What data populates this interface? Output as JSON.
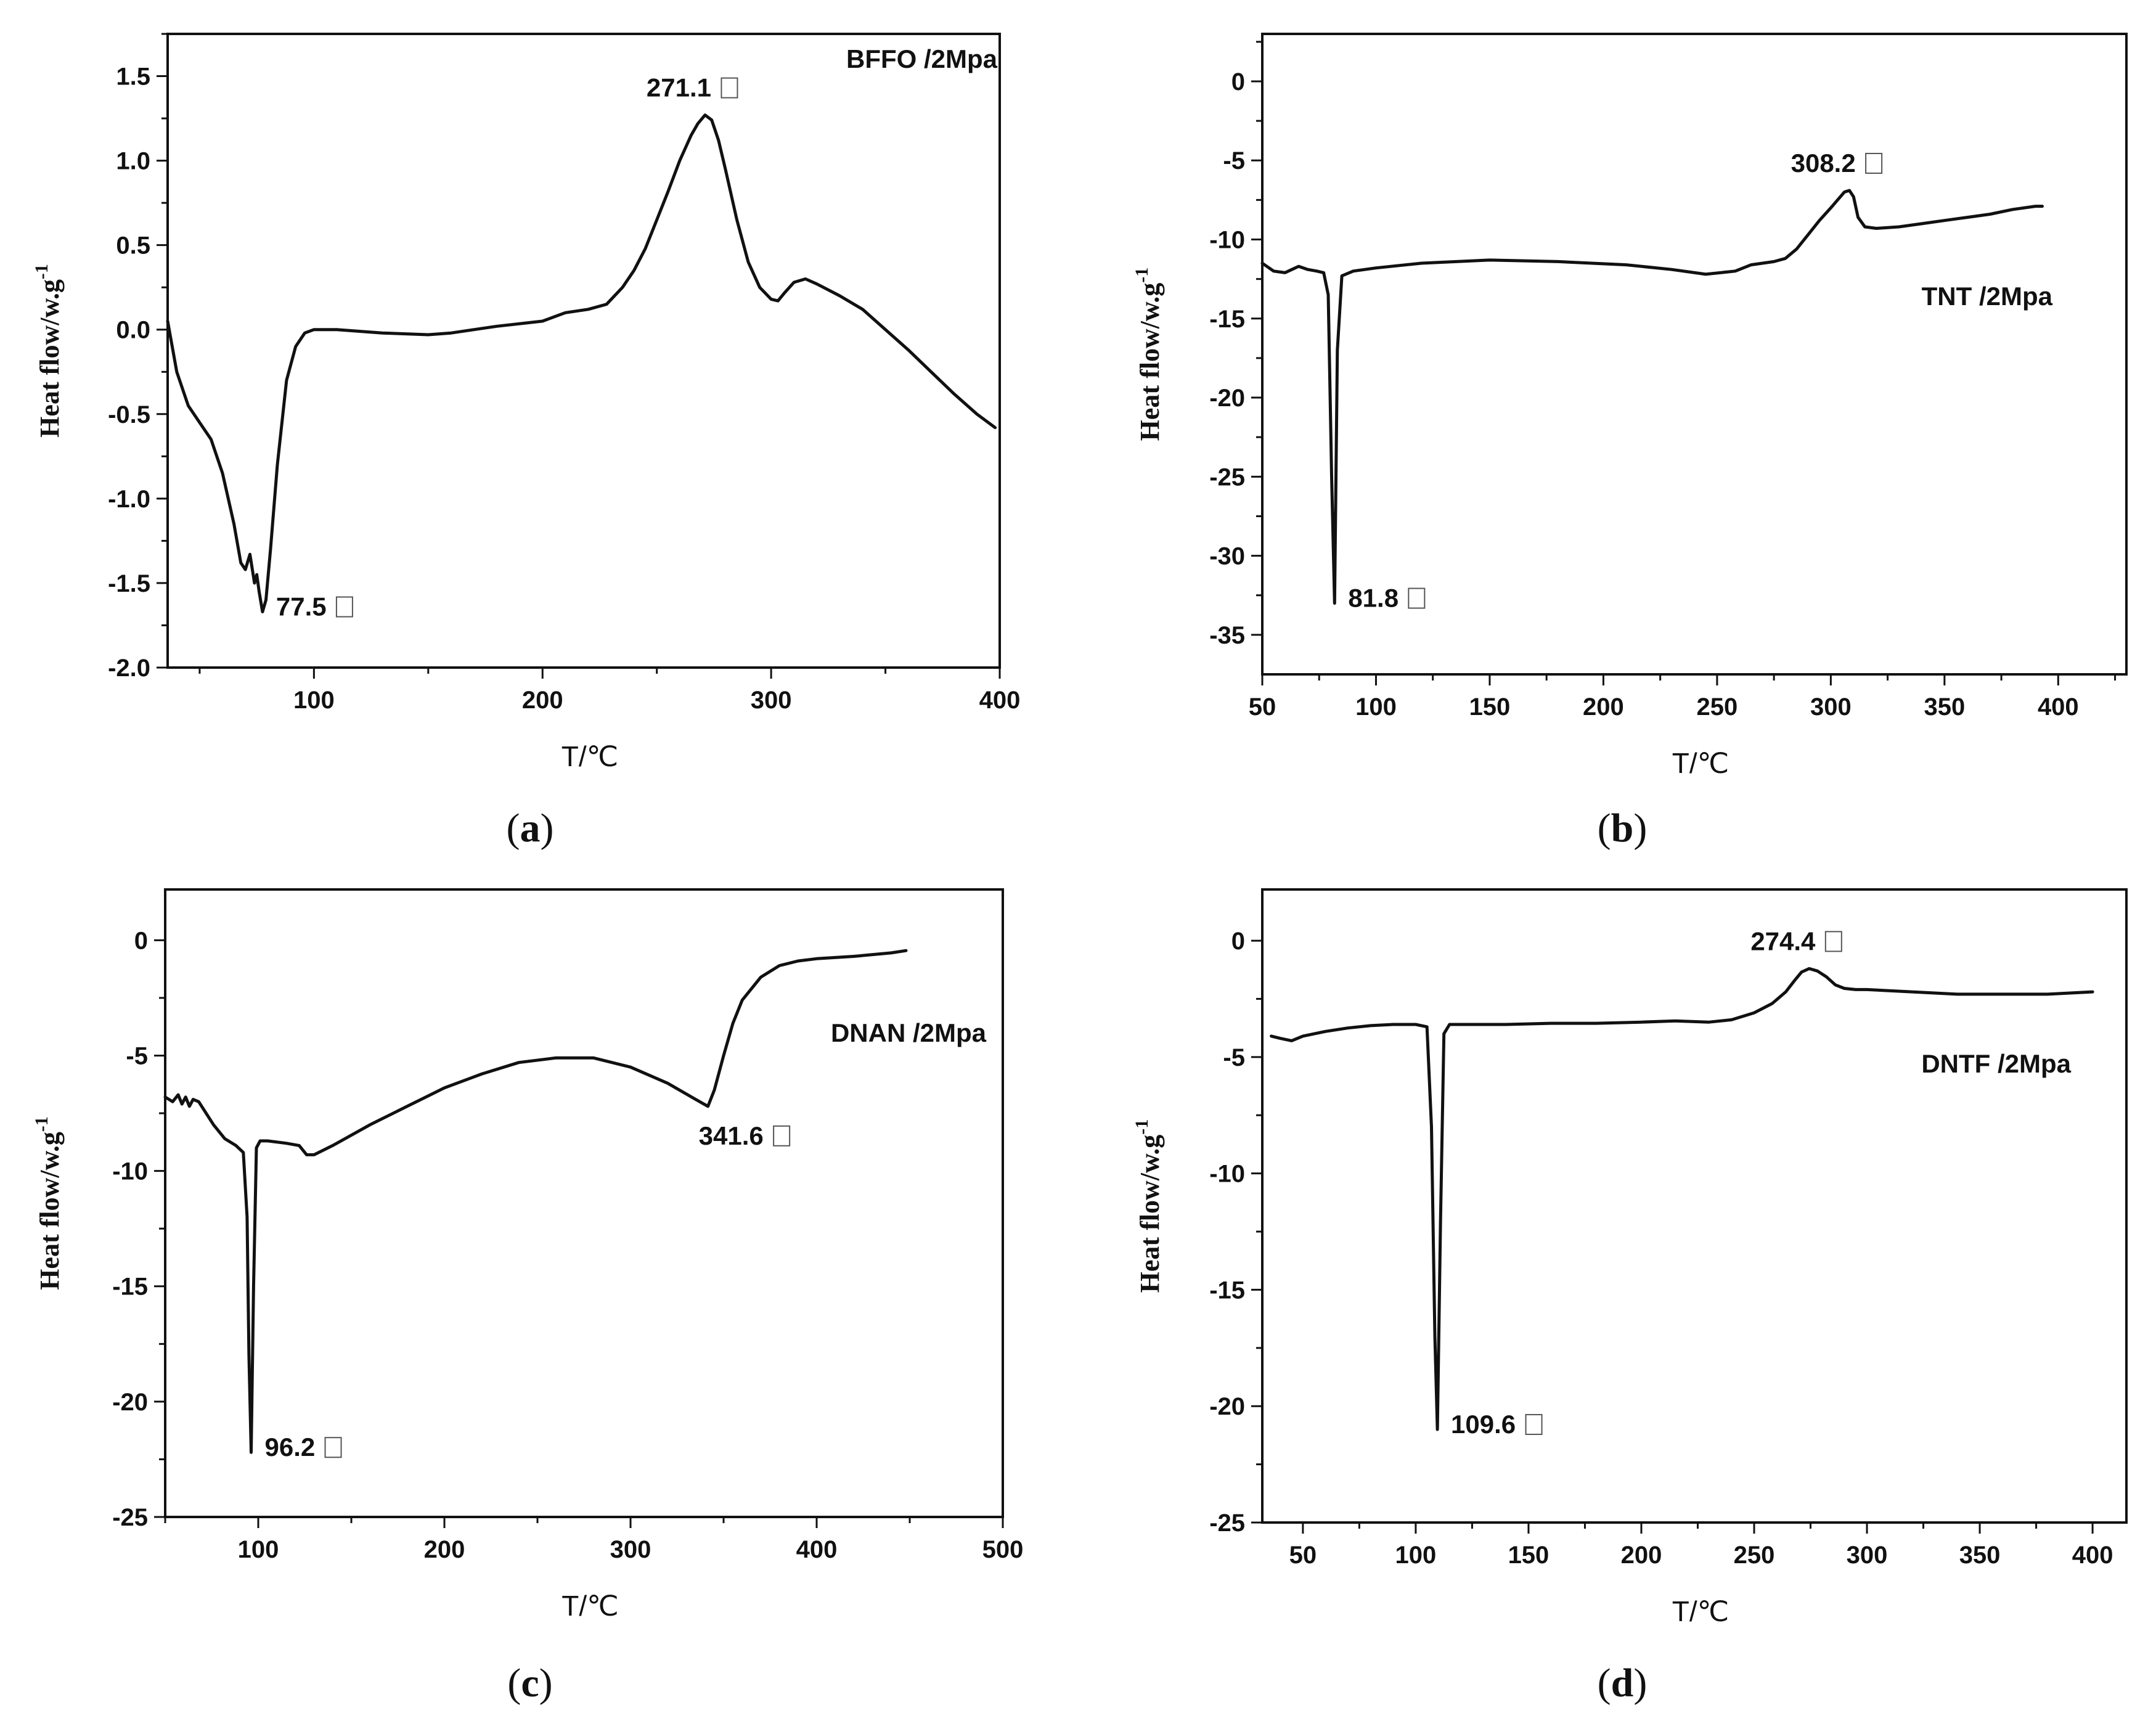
{
  "chart_data": [
    {
      "type": "line",
      "panel": "a",
      "caption_letter": "a",
      "title": "BFFO /2Mpa",
      "title_placement": "top-right",
      "xlabel": "T/℃",
      "ylabel": "Heat flow/w.g",
      "ylabel_sup": "-1",
      "xlim": [
        36,
        400
      ],
      "ylim": [
        -2.0,
        1.75
      ],
      "xticks": [
        100,
        200,
        300,
        400
      ],
      "xtick_labels": [
        "100",
        "200",
        "300",
        "400"
      ],
      "yticks": [
        -2.0,
        -1.5,
        -1.0,
        -0.5,
        0.0,
        0.5,
        1.0,
        1.5
      ],
      "ytick_labels": [
        "-2.0",
        "-1.5",
        "-1.0",
        "-0.5",
        "0.0",
        "0.5",
        "1.0",
        "1.5"
      ],
      "annotations": [
        {
          "text": "271.1",
          "x": 271.1,
          "y": 1.27,
          "place": "above"
        },
        {
          "text": "77.5",
          "x": 77.5,
          "y": -1.67,
          "place": "right"
        }
      ],
      "series": [
        {
          "name": "BFFO",
          "x": [
            36,
            40,
            45,
            50,
            55,
            60,
            65,
            68,
            70,
            72,
            74,
            75,
            76,
            77.5,
            79,
            81,
            84,
            88,
            92,
            96,
            100,
            110,
            120,
            130,
            150,
            160,
            180,
            200,
            210,
            220,
            228,
            235,
            240,
            245,
            250,
            255,
            260,
            265,
            268,
            271.1,
            274,
            277,
            280,
            285,
            290,
            295,
            300,
            303,
            306,
            310,
            315,
            320,
            330,
            340,
            350,
            360,
            370,
            380,
            390,
            398
          ],
          "y": [
            0.05,
            -0.25,
            -0.45,
            -0.55,
            -0.65,
            -0.85,
            -1.15,
            -1.38,
            -1.42,
            -1.33,
            -1.5,
            -1.45,
            -1.55,
            -1.67,
            -1.6,
            -1.3,
            -0.8,
            -0.3,
            -0.1,
            -0.02,
            0.0,
            0.0,
            -0.01,
            -0.02,
            -0.03,
            -0.02,
            0.02,
            0.05,
            0.1,
            0.12,
            0.15,
            0.25,
            0.35,
            0.48,
            0.65,
            0.82,
            1.0,
            1.15,
            1.22,
            1.27,
            1.24,
            1.12,
            0.95,
            0.65,
            0.4,
            0.25,
            0.18,
            0.17,
            0.22,
            0.28,
            0.3,
            0.27,
            0.2,
            0.12,
            0.0,
            -0.12,
            -0.25,
            -0.38,
            -0.5,
            -0.58
          ]
        }
      ]
    },
    {
      "type": "line",
      "panel": "b",
      "caption_letter": "b",
      "title": "TNT /2Mpa",
      "title_placement": "top-right",
      "xlabel": "T/℃",
      "ylabel": "Heat flow/w.g",
      "ylabel_sup": "-1",
      "xlim": [
        50,
        430
      ],
      "ylim": [
        -37.5,
        3.0
      ],
      "xticks": [
        50,
        100,
        150,
        200,
        250,
        300,
        350,
        400
      ],
      "xtick_labels": [
        "50",
        "100",
        "150",
        "200",
        "250",
        "300",
        "350",
        "400"
      ],
      "yticks": [
        -35,
        -30,
        -25,
        -20,
        -15,
        -10,
        -5,
        0
      ],
      "ytick_labels": [
        "-35",
        "-30",
        "-25",
        "-20",
        "-15",
        "-10",
        "-5",
        "0"
      ],
      "annotations": [
        {
          "text": "308.2",
          "x": 308.2,
          "y": -6.9,
          "place": "above"
        },
        {
          "text": "81.8",
          "x": 81.8,
          "y": -33.0,
          "place": "right"
        }
      ],
      "series": [
        {
          "name": "TNT",
          "x": [
            50,
            55,
            60,
            63,
            66,
            70,
            74,
            77,
            79,
            80.5,
            81.8,
            83,
            85,
            90,
            100,
            120,
            150,
            180,
            210,
            230,
            245,
            258,
            265,
            275,
            280,
            285,
            290,
            295,
            300,
            303,
            306,
            308.2,
            310,
            312,
            315,
            320,
            330,
            340,
            350,
            360,
            370,
            380,
            390,
            393
          ],
          "y": [
            -11.5,
            -12.0,
            -12.1,
            -11.9,
            -11.7,
            -11.9,
            -12.0,
            -12.1,
            -13.5,
            -25.0,
            -33.0,
            -17.0,
            -12.3,
            -12.0,
            -11.8,
            -11.5,
            -11.3,
            -11.4,
            -11.6,
            -11.9,
            -12.2,
            -12.0,
            -11.6,
            -11.4,
            -11.2,
            -10.6,
            -9.7,
            -8.8,
            -8.0,
            -7.5,
            -7.0,
            -6.9,
            -7.3,
            -8.6,
            -9.2,
            -9.3,
            -9.2,
            -9.0,
            -8.8,
            -8.6,
            -8.4,
            -8.1,
            -7.9,
            -7.9
          ]
        }
      ]
    },
    {
      "type": "line",
      "panel": "c",
      "caption_letter": "c",
      "title": "DNAN /2Mpa",
      "title_placement": "top-right",
      "xlabel": "T/℃",
      "ylabel": "Heat flow/w.g",
      "ylabel_sup": "-1",
      "xlim": [
        50,
        500
      ],
      "ylim": [
        -25,
        2.2
      ],
      "xticks": [
        100,
        200,
        300,
        400,
        500
      ],
      "xtick_labels": [
        "100",
        "200",
        "300",
        "400",
        "500"
      ],
      "yticks": [
        -25,
        -20,
        -15,
        -10,
        -5,
        0
      ],
      "ytick_labels": [
        "-25",
        "-20",
        "-15",
        "-10",
        "-5",
        "0"
      ],
      "annotations": [
        {
          "text": "341.6",
          "x": 341.6,
          "y": -7.2,
          "place": "below"
        },
        {
          "text": "96.2",
          "x": 96.2,
          "y": -22.2,
          "place": "right"
        }
      ],
      "series": [
        {
          "name": "DNAN",
          "x": [
            50,
            54,
            57,
            59,
            61,
            63,
            65,
            68,
            72,
            76,
            82,
            88,
            92,
            94,
            95,
            96.2,
            97.5,
            99,
            101,
            105,
            115,
            122,
            126,
            130,
            140,
            160,
            180,
            200,
            220,
            240,
            260,
            280,
            300,
            320,
            335,
            341.6,
            345,
            350,
            355,
            360,
            370,
            380,
            390,
            400,
            420,
            440,
            448
          ],
          "y": [
            -6.8,
            -7.0,
            -6.7,
            -7.1,
            -6.8,
            -7.2,
            -6.9,
            -7.0,
            -7.5,
            -8.0,
            -8.6,
            -8.9,
            -9.2,
            -12.0,
            -18.0,
            -22.2,
            -15.0,
            -9.0,
            -8.7,
            -8.7,
            -8.8,
            -8.9,
            -9.3,
            -9.3,
            -8.9,
            -8.0,
            -7.2,
            -6.4,
            -5.8,
            -5.3,
            -5.1,
            -5.1,
            -5.5,
            -6.2,
            -6.9,
            -7.2,
            -6.5,
            -5.0,
            -3.6,
            -2.6,
            -1.6,
            -1.1,
            -0.9,
            -0.8,
            -0.7,
            -0.55,
            -0.45
          ]
        }
      ]
    },
    {
      "type": "line",
      "panel": "d",
      "caption_letter": "d",
      "title": "DNTF /2Mpa",
      "title_placement": "top-right",
      "xlabel": "T/℃",
      "ylabel": "Heat flow/w.g",
      "ylabel_sup": "-1",
      "xlim": [
        32,
        415
      ],
      "ylim": [
        -25,
        2.2
      ],
      "xticks": [
        50,
        100,
        150,
        200,
        250,
        300,
        350,
        400
      ],
      "xtick_labels": [
        "50",
        "100",
        "150",
        "200",
        "250",
        "300",
        "350",
        "400"
      ],
      "yticks": [
        -25,
        -20,
        -15,
        -10,
        -5,
        0
      ],
      "ytick_labels": [
        "-25",
        "-20",
        "-15",
        "-10",
        "-5",
        "0"
      ],
      "annotations": [
        {
          "text": "274.4",
          "x": 274.4,
          "y": -1.2,
          "place": "above"
        },
        {
          "text": "109.6",
          "x": 109.6,
          "y": -21.0,
          "place": "right"
        }
      ],
      "series": [
        {
          "name": "DNTF",
          "x": [
            36,
            40,
            45,
            50,
            60,
            70,
            80,
            90,
            100,
            105,
            107,
            108.5,
            109.6,
            111,
            112.5,
            115,
            120,
            140,
            160,
            180,
            200,
            215,
            230,
            240,
            250,
            258,
            264,
            268,
            271,
            274.4,
            278,
            282,
            286,
            290,
            295,
            300,
            320,
            340,
            360,
            380,
            400
          ],
          "y": [
            -4.1,
            -4.2,
            -4.3,
            -4.1,
            -3.9,
            -3.75,
            -3.65,
            -3.6,
            -3.6,
            -3.7,
            -8.0,
            -17.0,
            -21.0,
            -12.0,
            -4.0,
            -3.6,
            -3.6,
            -3.6,
            -3.55,
            -3.55,
            -3.5,
            -3.45,
            -3.5,
            -3.4,
            -3.1,
            -2.7,
            -2.2,
            -1.7,
            -1.35,
            -1.2,
            -1.3,
            -1.55,
            -1.9,
            -2.05,
            -2.1,
            -2.1,
            -2.2,
            -2.3,
            -2.3,
            -2.3,
            -2.2
          ]
        }
      ]
    }
  ]
}
